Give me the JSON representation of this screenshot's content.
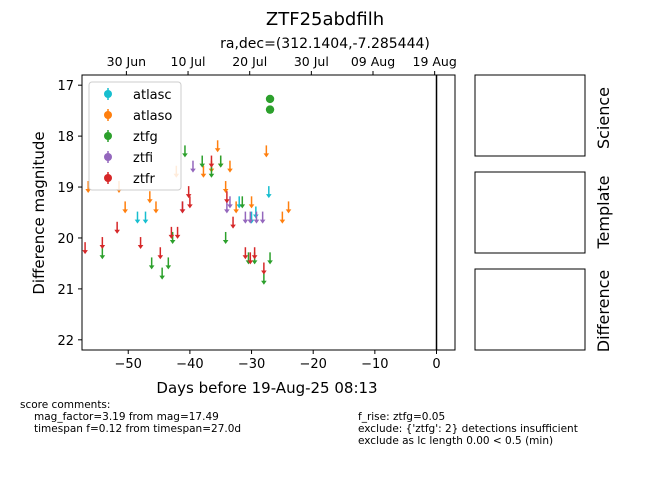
{
  "title": "ZTF25abdfilh",
  "subtitle": "ra,dec=(312.1404,-7.285444)",
  "xlabel": "Days before 19-Aug-25 08:13",
  "ylabel": "Difference magnitude",
  "top_ticks": [
    "30 Jun",
    "10 Jul",
    "20 Jul",
    "30 Jul",
    "09 Aug",
    "19 Aug"
  ],
  "side_labels": [
    "Science",
    "Template",
    "Difference"
  ],
  "comments": {
    "header": "score comments:",
    "left": [
      "mag_factor=3.19 from mag=17.49",
      "timespan f=0.12 from timespan=27.0d"
    ],
    "right": [
      "f_rise: ztfg=0.05",
      "exclude: {'ztfg': 2} detections insufficient",
      "exclude as lc length 0.00 < 0.5 (min)"
    ]
  },
  "chart_data": {
    "type": "scatter",
    "xlim": [
      -57.5,
      3
    ],
    "ylim": [
      22.2,
      16.8
    ],
    "y_inverted": true,
    "x_ticks": [
      -50,
      -40,
      -30,
      -20,
      -10,
      0
    ],
    "y_ticks": [
      17,
      18,
      19,
      20,
      21,
      22
    ],
    "top_axis_ticks": [
      {
        "label": "30 Jun",
        "x": -50.3
      },
      {
        "label": "10 Jul",
        "x": -40.3
      },
      {
        "label": "20 Jul",
        "x": -30.3
      },
      {
        "label": "30 Jul",
        "x": -20.3
      },
      {
        "label": "09 Aug",
        "x": -10.3
      },
      {
        "label": "19 Aug",
        "x": -0.3
      }
    ],
    "vline_x": 0,
    "legend_position": "upper-left",
    "series": [
      {
        "name": "atlasc",
        "color": "#17becf",
        "marker": "errorbar",
        "points": [
          [
            -48.5,
            19.6
          ],
          [
            -47.2,
            19.6
          ],
          [
            -32,
            19.3
          ],
          [
            -30,
            19.6
          ],
          [
            -29.3,
            19.5
          ],
          [
            -27.2,
            19.1
          ]
        ]
      },
      {
        "name": "atlaso",
        "color": "#ff7f0e",
        "marker": "errorbar",
        "points": [
          [
            -56.5,
            19.0
          ],
          [
            -51.5,
            19.0
          ],
          [
            -50.5,
            19.4
          ],
          [
            -46.5,
            19.2
          ],
          [
            -45.5,
            19.4
          ],
          [
            -42.2,
            18.7
          ],
          [
            -37.8,
            18.7
          ],
          [
            -36.5,
            18.6
          ],
          [
            -35.5,
            18.2
          ],
          [
            -35.0,
            18.5
          ],
          [
            -34.2,
            19.0
          ],
          [
            -33.5,
            18.6
          ],
          [
            -32.5,
            19.4
          ],
          [
            -30.0,
            19.3
          ],
          [
            -27.6,
            18.3
          ],
          [
            -25.0,
            19.6
          ],
          [
            -24.0,
            19.4
          ]
        ]
      },
      {
        "name": "ztfg",
        "color": "#2ca02c",
        "marker": "errorbar",
        "points": [
          [
            -54.2,
            20.3
          ],
          [
            -46.2,
            20.5
          ],
          [
            -44.5,
            20.7
          ],
          [
            -43.5,
            20.5
          ],
          [
            -42.8,
            20.0
          ],
          [
            -40.8,
            18.3
          ],
          [
            -38.0,
            18.5
          ],
          [
            -36.5,
            18.7
          ],
          [
            -35.0,
            18.5
          ],
          [
            -34.2,
            20.0
          ],
          [
            -31.5,
            19.3
          ],
          [
            -30.5,
            20.4
          ],
          [
            -29.5,
            20.4
          ],
          [
            -28.0,
            20.8
          ],
          [
            -27.0,
            20.4
          ]
        ]
      },
      {
        "name": "ztfg-detection",
        "color": "#2ca02c",
        "marker": "dot",
        "points": [
          [
            -27.0,
            17.27
          ],
          [
            -27.0,
            17.48
          ]
        ]
      },
      {
        "name": "ztfi",
        "color": "#9467bd",
        "marker": "errorbar",
        "points": [
          [
            -41.2,
            19.4
          ],
          [
            -39.5,
            18.6
          ],
          [
            -34.0,
            19.4
          ],
          [
            -33.5,
            19.3
          ],
          [
            -31.0,
            19.6
          ],
          [
            -30.2,
            19.6
          ],
          [
            -29.2,
            19.6
          ],
          [
            -28.2,
            19.6
          ]
        ]
      },
      {
        "name": "ztfr",
        "color": "#d62728",
        "marker": "errorbar",
        "points": [
          [
            -57.0,
            20.2
          ],
          [
            -54.2,
            20.1
          ],
          [
            -51.8,
            19.8
          ],
          [
            -48.0,
            20.1
          ],
          [
            -44.8,
            20.3
          ],
          [
            -43.0,
            19.9
          ],
          [
            -42.0,
            19.9
          ],
          [
            -41.2,
            19.4
          ],
          [
            -40.2,
            19.1
          ],
          [
            -40.0,
            19.3
          ],
          [
            -36.5,
            18.5
          ],
          [
            -34.0,
            19.2
          ],
          [
            -31.0,
            20.3
          ],
          [
            -30.2,
            20.4
          ],
          [
            -29.5,
            20.3
          ],
          [
            -28.0,
            20.6
          ],
          [
            -33.0,
            19.7
          ]
        ]
      }
    ]
  }
}
